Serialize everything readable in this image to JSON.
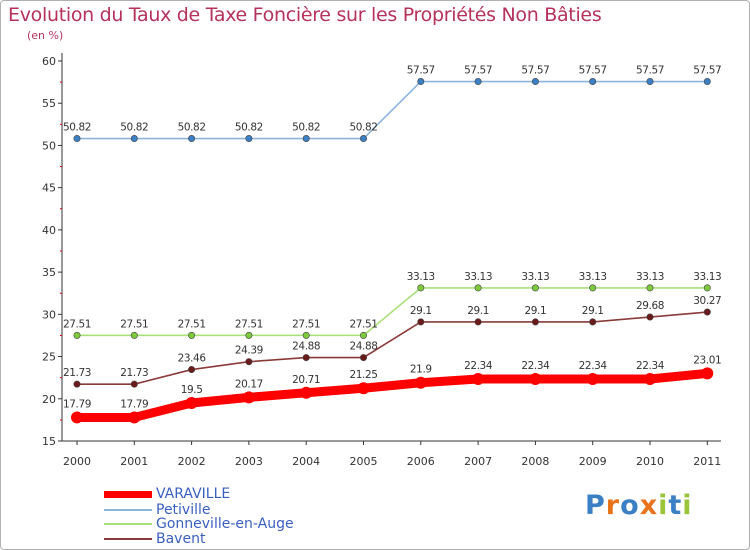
{
  "title": "Evolution du Taux de Taxe Foncière sur les Propriétés Non Bâties",
  "unit": "(en %)",
  "logo": "Proxiti",
  "colors": {
    "title": "#b5325b",
    "legend_text": "#3a5fc0",
    "axis": "#333333"
  },
  "chart_data": {
    "type": "line",
    "title": "Evolution du Taux de Taxe Foncière sur les Propriétés Non Bâties",
    "ylabel": "(en %)",
    "xlabel": "",
    "ylim": [
      15,
      60
    ],
    "yticks": [
      15,
      20,
      25,
      30,
      35,
      40,
      45,
      50,
      55,
      60
    ],
    "categories": [
      "2000",
      "2001",
      "2002",
      "2003",
      "2004",
      "2005",
      "2006",
      "2007",
      "2008",
      "2009",
      "2010",
      "2011"
    ],
    "grid": false,
    "legend_position": "bottom-left",
    "series": [
      {
        "name": "VARAVILLE",
        "color": "#ff0000",
        "marker": "#ff0000",
        "width": "thick",
        "values": [
          17.79,
          17.79,
          19.5,
          20.17,
          20.71,
          21.25,
          21.9,
          22.34,
          22.34,
          22.34,
          22.34,
          23.01
        ],
        "labels": [
          "17.79",
          "17.79",
          "19.5",
          "20.17",
          "20.71",
          "21.25",
          "21.9",
          "22.34",
          "22.34",
          "22.34",
          "22.34",
          "23.01"
        ]
      },
      {
        "name": "Petiville",
        "color": "#8db4da",
        "marker": "#3b7fc4",
        "width": "thin",
        "values": [
          50.82,
          50.82,
          50.82,
          50.82,
          50.82,
          50.82,
          57.57,
          57.57,
          57.57,
          57.57,
          57.57,
          57.57
        ],
        "labels": [
          "50.82",
          "50.82",
          "50.82",
          "50.82",
          "50.82",
          "50.82",
          "57.57",
          "57.57",
          "57.57",
          "57.57",
          "57.57",
          "57.57"
        ]
      },
      {
        "name": "Gonneville-en-Auge",
        "color": "#a9e07a",
        "marker": "#7ec83e",
        "width": "thin",
        "values": [
          27.51,
          27.51,
          27.51,
          27.51,
          27.51,
          27.51,
          33.13,
          33.13,
          33.13,
          33.13,
          33.13,
          33.13
        ],
        "labels": [
          "27.51",
          "27.51",
          "27.51",
          "27.51",
          "27.51",
          "27.51",
          "33.13",
          "33.13",
          "33.13",
          "33.13",
          "33.13",
          "33.13"
        ]
      },
      {
        "name": "Bavent",
        "color": "#8b3a3a",
        "marker": "#6b1a1a",
        "width": "thin",
        "values": [
          21.73,
          21.73,
          23.46,
          24.39,
          24.88,
          24.88,
          29.1,
          29.1,
          29.1,
          29.1,
          29.68,
          30.27
        ],
        "labels": [
          "21.73",
          "21.73",
          "23.46",
          "24.39",
          "24.88",
          "24.88",
          "29.1",
          "29.1",
          "29.1",
          "29.1",
          "29.68",
          "30.27"
        ]
      }
    ]
  }
}
